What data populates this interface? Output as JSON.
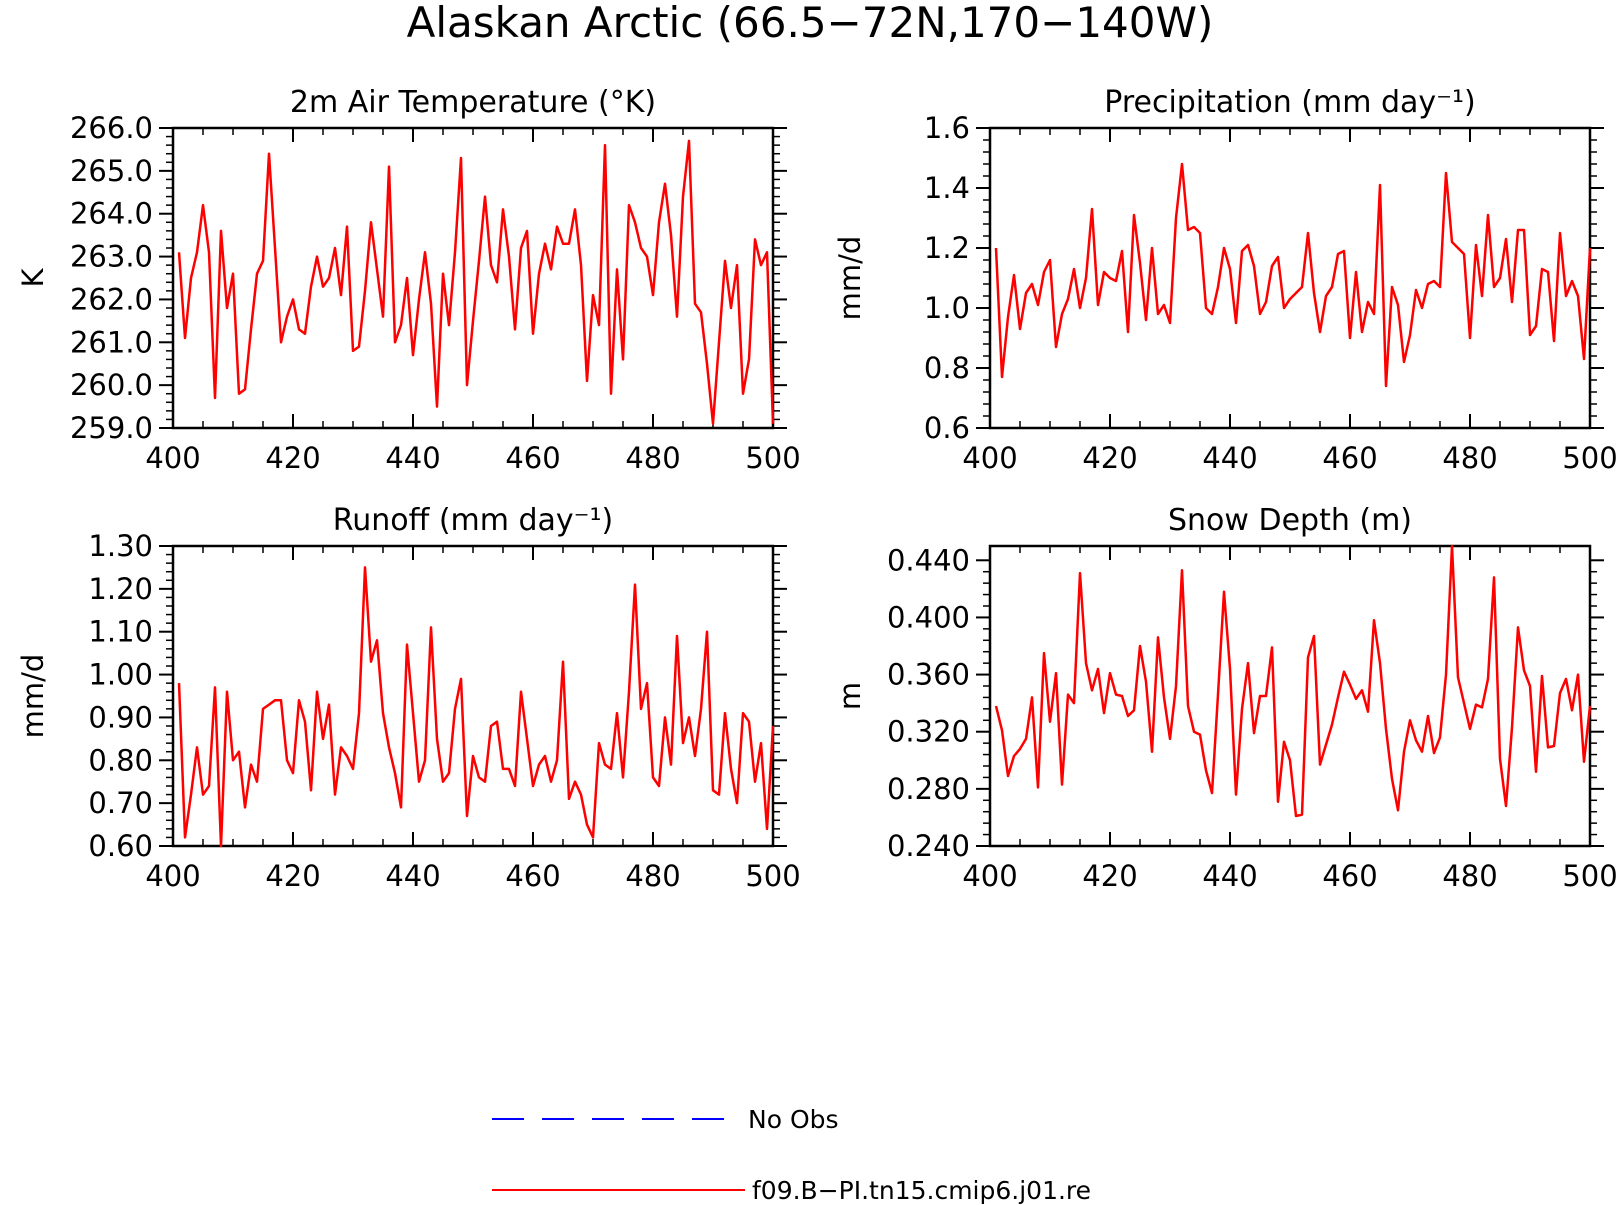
{
  "page_title": "Alaskan Arctic (66.5−72N,170−140W)",
  "legend": {
    "items": [
      {
        "label": "No Obs",
        "color": "#0000ff",
        "style": "dashed"
      },
      {
        "label": "f09.B−PI.tn15.cmip6.j01.re",
        "color": "#ff0000",
        "style": "solid"
      }
    ]
  },
  "chart_data": [
    {
      "type": "line",
      "title": "2m Air Temperature (°K)",
      "ylabel": "K",
      "xlabel": "",
      "xlim": [
        400,
        500
      ],
      "ylim": [
        259.0,
        266.0
      ],
      "xticks": [
        400,
        420,
        440,
        460,
        480,
        500
      ],
      "yticks": [
        259.0,
        260.0,
        261.0,
        262.0,
        263.0,
        264.0,
        265.0,
        266.0
      ],
      "ytick_decimals": 1,
      "ytick_labels": [
        "259.0",
        "260.0",
        "261.0",
        "262.0",
        "263.0",
        "264.0",
        "265.0",
        "266.0"
      ],
      "xtick_labels": [
        "400",
        "420",
        "440",
        "460",
        "480",
        "500"
      ],
      "series": [
        {
          "color": "#ff0000",
          "x_start": 401,
          "values": [
            263.1,
            261.1,
            262.5,
            263.1,
            264.2,
            263.1,
            259.7,
            263.6,
            261.8,
            262.6,
            259.8,
            259.9,
            261.3,
            262.6,
            262.9,
            265.4,
            263.2,
            261.0,
            261.6,
            262.0,
            261.3,
            261.2,
            262.3,
            263.0,
            262.3,
            262.5,
            263.2,
            262.1,
            263.7,
            260.8,
            260.9,
            262.2,
            263.8,
            262.7,
            261.6,
            265.1,
            261.0,
            261.4,
            262.5,
            260.7,
            262.0,
            263.1,
            261.9,
            259.5,
            262.6,
            261.4,
            263.1,
            265.3,
            260.0,
            261.5,
            262.9,
            264.4,
            262.8,
            262.4,
            264.1,
            263.0,
            261.3,
            263.2,
            263.6,
            261.2,
            262.6,
            263.3,
            262.7,
            263.7,
            263.3,
            263.3,
            264.1,
            262.8,
            260.1,
            262.1,
            261.4,
            265.6,
            259.8,
            262.7,
            260.6,
            264.2,
            263.8,
            263.2,
            263.0,
            262.1,
            263.8,
            264.7,
            263.5,
            261.6,
            264.4,
            265.7,
            261.9,
            261.7,
            260.5,
            259.1,
            261.0,
            262.9,
            261.8,
            262.8,
            259.8,
            260.6,
            263.4,
            262.8,
            263.1,
            259.1
          ]
        }
      ]
    },
    {
      "type": "line",
      "title": "Precipitation (mm day⁻¹)",
      "ylabel": "mm/d",
      "xlabel": "",
      "xlim": [
        400,
        500
      ],
      "ylim": [
        0.6,
        1.6
      ],
      "xticks": [
        400,
        420,
        440,
        460,
        480,
        500
      ],
      "yticks": [
        0.6,
        0.8,
        1.0,
        1.2,
        1.4,
        1.6
      ],
      "ytick_decimals": 1,
      "ytick_labels": [
        "0.6",
        "0.8",
        "1.0",
        "1.2",
        "1.4",
        "1.6"
      ],
      "xtick_labels": [
        "400",
        "420",
        "440",
        "460",
        "480",
        "500"
      ],
      "series": [
        {
          "color": "#ff0000",
          "x_start": 401,
          "values": [
            1.2,
            0.77,
            0.97,
            1.11,
            0.93,
            1.05,
            1.08,
            1.01,
            1.12,
            1.16,
            0.87,
            0.98,
            1.03,
            1.13,
            1.0,
            1.1,
            1.33,
            1.01,
            1.12,
            1.1,
            1.09,
            1.19,
            0.92,
            1.31,
            1.15,
            0.96,
            1.2,
            0.98,
            1.01,
            0.95,
            1.3,
            1.48,
            1.26,
            1.27,
            1.25,
            1.0,
            0.98,
            1.07,
            1.2,
            1.13,
            0.95,
            1.19,
            1.21,
            1.14,
            0.98,
            1.02,
            1.14,
            1.17,
            1.0,
            1.03,
            1.05,
            1.07,
            1.25,
            1.05,
            0.92,
            1.04,
            1.07,
            1.18,
            1.19,
            0.9,
            1.12,
            0.92,
            1.02,
            0.98,
            1.41,
            0.74,
            1.07,
            1.01,
            0.82,
            0.91,
            1.06,
            1.0,
            1.08,
            1.09,
            1.07,
            1.45,
            1.22,
            1.2,
            1.18,
            0.9,
            1.21,
            1.04,
            1.31,
            1.07,
            1.1,
            1.23,
            1.02,
            1.26,
            1.26,
            0.91,
            0.94,
            1.13,
            1.12,
            0.89,
            1.25,
            1.04,
            1.09,
            1.04,
            0.83,
            1.2
          ]
        }
      ]
    },
    {
      "type": "line",
      "title": "Runoff (mm day⁻¹)",
      "ylabel": "mm/d",
      "xlabel": "",
      "xlim": [
        400,
        500
      ],
      "ylim": [
        0.6,
        1.3
      ],
      "xticks": [
        400,
        420,
        440,
        460,
        480,
        500
      ],
      "yticks": [
        0.6,
        0.7,
        0.8,
        0.9,
        1.0,
        1.1,
        1.2,
        1.3
      ],
      "ytick_decimals": 2,
      "ytick_labels": [
        "0.60",
        "0.70",
        "0.80",
        "0.90",
        "1.00",
        "1.10",
        "1.20",
        "1.30"
      ],
      "xtick_labels": [
        "400",
        "420",
        "440",
        "460",
        "480",
        "500"
      ],
      "series": [
        {
          "color": "#ff0000",
          "x_start": 401,
          "values": [
            0.98,
            0.62,
            0.72,
            0.83,
            0.72,
            0.74,
            0.97,
            0.6,
            0.96,
            0.8,
            0.82,
            0.69,
            0.79,
            0.75,
            0.92,
            0.93,
            0.94,
            0.94,
            0.8,
            0.77,
            0.94,
            0.89,
            0.73,
            0.96,
            0.85,
            0.93,
            0.72,
            0.83,
            0.81,
            0.78,
            0.91,
            1.25,
            1.03,
            1.08,
            0.91,
            0.83,
            0.77,
            0.69,
            1.07,
            0.91,
            0.75,
            0.8,
            1.11,
            0.85,
            0.75,
            0.77,
            0.92,
            0.99,
            0.67,
            0.81,
            0.76,
            0.75,
            0.88,
            0.89,
            0.78,
            0.78,
            0.74,
            0.96,
            0.85,
            0.74,
            0.79,
            0.81,
            0.75,
            0.8,
            1.03,
            0.71,
            0.75,
            0.72,
            0.65,
            0.62,
            0.84,
            0.79,
            0.78,
            0.91,
            0.76,
            0.96,
            1.21,
            0.92,
            0.98,
            0.76,
            0.74,
            0.9,
            0.79,
            1.09,
            0.84,
            0.9,
            0.81,
            0.92,
            1.1,
            0.73,
            0.72,
            0.91,
            0.78,
            0.7,
            0.91,
            0.89,
            0.75,
            0.84,
            0.64,
            0.88
          ]
        }
      ]
    },
    {
      "type": "line",
      "title": "Snow Depth (m)",
      "ylabel": "m",
      "xlabel": "",
      "xlim": [
        400,
        500
      ],
      "ylim": [
        0.24,
        0.45
      ],
      "xticks": [
        400,
        420,
        440,
        460,
        480,
        500
      ],
      "yticks": [
        0.24,
        0.28,
        0.32,
        0.36,
        0.4,
        0.44
      ],
      "ytick_decimals": 3,
      "ytick_labels": [
        "0.240",
        "0.280",
        "0.320",
        "0.360",
        "0.400",
        "0.440"
      ],
      "xtick_labels": [
        "400",
        "420",
        "440",
        "460",
        "480",
        "500"
      ],
      "series": [
        {
          "color": "#ff0000",
          "x_start": 401,
          "values": [
            0.338,
            0.321,
            0.289,
            0.303,
            0.308,
            0.315,
            0.344,
            0.281,
            0.375,
            0.327,
            0.361,
            0.283,
            0.346,
            0.34,
            0.431,
            0.368,
            0.349,
            0.364,
            0.333,
            0.361,
            0.346,
            0.345,
            0.331,
            0.335,
            0.38,
            0.355,
            0.306,
            0.386,
            0.344,
            0.315,
            0.352,
            0.433,
            0.338,
            0.32,
            0.318,
            0.293,
            0.277,
            0.346,
            0.418,
            0.364,
            0.276,
            0.336,
            0.368,
            0.319,
            0.345,
            0.345,
            0.379,
            0.271,
            0.313,
            0.3,
            0.261,
            0.262,
            0.372,
            0.387,
            0.297,
            0.311,
            0.325,
            0.344,
            0.362,
            0.353,
            0.343,
            0.349,
            0.334,
            0.398,
            0.368,
            0.322,
            0.287,
            0.265,
            0.306,
            0.328,
            0.314,
            0.306,
            0.331,
            0.305,
            0.316,
            0.36,
            0.45,
            0.358,
            0.34,
            0.322,
            0.339,
            0.337,
            0.357,
            0.428,
            0.301,
            0.268,
            0.323,
            0.393,
            0.363,
            0.352,
            0.292,
            0.359,
            0.309,
            0.31,
            0.347,
            0.357,
            0.335,
            0.36,
            0.299,
            0.338
          ]
        }
      ]
    }
  ]
}
